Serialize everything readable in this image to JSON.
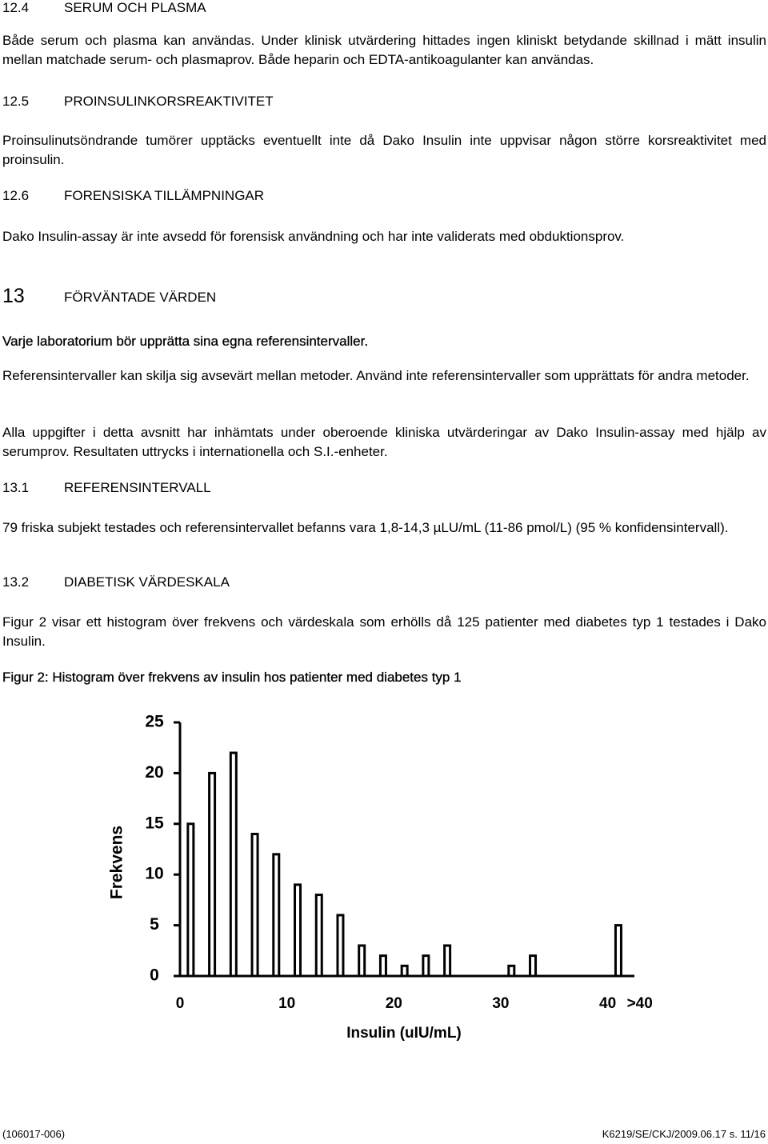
{
  "sections": [
    {
      "number": "12.4",
      "title": "SERUM OCH PLASMA",
      "paragraphs": [
        "Både serum och plasma kan användas. Under klinisk utvärdering hittades ingen kliniskt betydande skillnad i mätt insulin mellan matchade serum- och plasmaprov. Både heparin och EDTA-antikoagulanter kan användas."
      ]
    },
    {
      "number": "12.5",
      "title": "PROINSULINKORSREAKTIVITET",
      "paragraphs": [
        "Proinsulinutsöndrande tumörer upptäcks eventuellt inte då Dako Insulin inte uppvisar någon större korsreaktivitet med proinsulin."
      ]
    },
    {
      "number": "12.6",
      "title": "FORENSISKA TILLÄMPNINGAR",
      "paragraphs": [
        "Dako Insulin-assay är inte avsedd för forensisk användning och har inte validerats med obduktionsprov."
      ]
    },
    {
      "number": "13",
      "title": "FÖRVÄNTADE VÄRDEN",
      "paragraphs": [
        "Varje laboratorium bör upprätta sina egna referensintervaller.",
        "Referensintervaller kan skilja sig avsevärt mellan metoder. Använd inte referensintervaller som upprättats för andra metoder.",
        "Alla uppgifter i detta avsnitt har inhämtats under oberoende kliniska utvärderingar av Dako Insulin-assay med hjälp av serumprov. Resultaten uttrycks i internationella och S.I.-enheter."
      ]
    },
    {
      "number": "13.1",
      "title": "REFERENSINTERVALL",
      "paragraphs": [
        "79 friska subjekt testades och referensintervallet befanns vara 1,8-14,3 µLU/mL (11-86 pmol/L) (95 % konfidensintervall)."
      ]
    },
    {
      "number": "13.2",
      "title": "DIABETISK VÄRDESKALA",
      "paragraphs": [
        "Figur 2 visar ett histogram över frekvens och värdeskala som erhölls då 125 patienter med diabetes typ 1 testades i Dako Insulin."
      ]
    }
  ],
  "figure_caption": "Figur 2: Histogram över frekvens av insulin hos patienter med diabetes typ 1",
  "chart_data": {
    "type": "histogram",
    "x_label": "Insulin (uIU/mL)",
    "y_label": "Frekvens",
    "bins": [
      0,
      2,
      4,
      6,
      8,
      10,
      12,
      14,
      16,
      18,
      20,
      22,
      24,
      26,
      28,
      30,
      32,
      34,
      36,
      38,
      40,
      42
    ],
    "values": [
      15,
      20,
      22,
      14,
      12,
      9,
      8,
      6,
      3,
      2,
      1,
      2,
      3,
      0,
      0,
      1,
      2,
      0,
      0,
      0,
      5
    ],
    "color": "#ffffff",
    "xlim": [
      0,
      42.5
    ],
    "xticks": [
      0,
      10,
      20,
      30,
      40,
      {
        "value": 43,
        "label": ">40"
      }
    ],
    "ylim": [
      0,
      25
    ],
    "yticks": [
      0,
      5,
      10,
      15,
      20,
      25
    ],
    "grid": false
  },
  "footer": {
    "left": "(106017-006)",
    "right": "K6219/SE/CKJ/2009.06.17 s. 11/16"
  }
}
